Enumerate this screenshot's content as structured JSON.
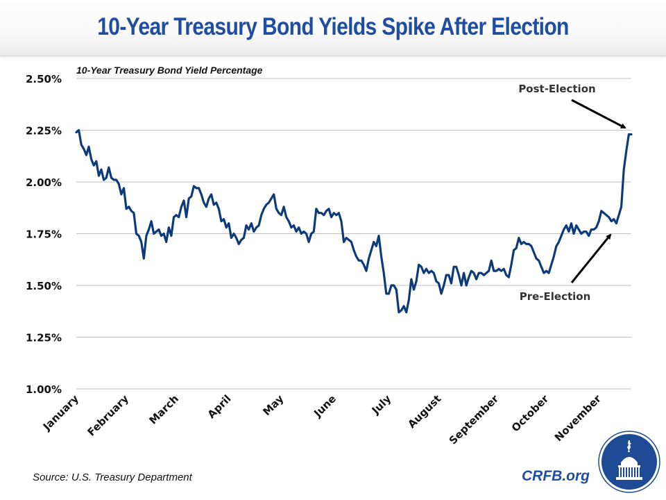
{
  "header": {
    "title": "10-Year Treasury Bond Yields Spike After Election"
  },
  "footer": {
    "source": "Source: U.S. Treasury Department",
    "brand": "CRFB.org",
    "logo_icon": "capitol-dome-icon"
  },
  "colors": {
    "title": "#1f4ea1",
    "line": "#0d3a7a",
    "grid": "#bfbfbf",
    "logo_bg": "#1f4a96"
  },
  "chart_data": {
    "type": "line",
    "title": "10-Year Treasury Bond Yield Percentage",
    "xlabel": "",
    "ylabel": "",
    "ylim": [
      1.0,
      2.5
    ],
    "yticks": [
      1.0,
      1.25,
      1.5,
      1.75,
      2.0,
      2.25,
      2.5
    ],
    "ytick_labels": [
      "1.00%",
      "1.25%",
      "1.50%",
      "1.75%",
      "2.00%",
      "2.25%",
      "2.50%"
    ],
    "grid": true,
    "legend": "none",
    "categories": [
      "January",
      "February",
      "March",
      "April",
      "May",
      "June",
      "July",
      "August",
      "September",
      "October",
      "November"
    ],
    "category_start_index": [
      0,
      20,
      40,
      61,
      82,
      103,
      125,
      145,
      168,
      188,
      209
    ],
    "series": [
      {
        "name": "10-Year Treasury Bond Yield",
        "values": [
          2.24,
          2.25,
          2.18,
          2.16,
          2.13,
          2.17,
          2.11,
          2.08,
          2.1,
          2.03,
          2.06,
          2.01,
          2.02,
          2.07,
          2.02,
          2.01,
          2.01,
          1.99,
          1.94,
          1.97,
          1.87,
          1.88,
          1.86,
          1.85,
          1.75,
          1.74,
          1.71,
          1.63,
          1.74,
          1.77,
          1.81,
          1.75,
          1.76,
          1.77,
          1.74,
          1.75,
          1.71,
          1.78,
          1.74,
          1.83,
          1.84,
          1.83,
          1.88,
          1.91,
          1.83,
          1.92,
          1.93,
          1.98,
          1.97,
          1.97,
          1.94,
          1.9,
          1.88,
          1.92,
          1.94,
          1.89,
          1.9,
          1.87,
          1.81,
          1.82,
          1.78,
          1.8,
          1.73,
          1.75,
          1.73,
          1.7,
          1.72,
          1.73,
          1.79,
          1.77,
          1.8,
          1.76,
          1.78,
          1.79,
          1.84,
          1.87,
          1.89,
          1.9,
          1.92,
          1.94,
          1.87,
          1.85,
          1.84,
          1.88,
          1.83,
          1.81,
          1.78,
          1.79,
          1.76,
          1.78,
          1.75,
          1.76,
          1.75,
          1.71,
          1.75,
          1.76,
          1.87,
          1.85,
          1.85,
          1.84,
          1.86,
          1.87,
          1.83,
          1.85,
          1.84,
          1.85,
          1.81,
          1.71,
          1.73,
          1.72,
          1.71,
          1.67,
          1.64,
          1.62,
          1.62,
          1.6,
          1.57,
          1.63,
          1.67,
          1.71,
          1.69,
          1.74,
          1.64,
          1.56,
          1.46,
          1.46,
          1.5,
          1.5,
          1.48,
          1.37,
          1.38,
          1.4,
          1.37,
          1.43,
          1.53,
          1.48,
          1.52,
          1.6,
          1.59,
          1.56,
          1.58,
          1.56,
          1.57,
          1.56,
          1.52,
          1.51,
          1.46,
          1.5,
          1.55,
          1.55,
          1.51,
          1.59,
          1.59,
          1.55,
          1.5,
          1.56,
          1.5,
          1.54,
          1.57,
          1.56,
          1.53,
          1.56,
          1.56,
          1.55,
          1.56,
          1.57,
          1.62,
          1.57,
          1.57,
          1.58,
          1.57,
          1.58,
          1.55,
          1.54,
          1.6,
          1.67,
          1.68,
          1.73,
          1.7,
          1.71,
          1.7,
          1.7,
          1.69,
          1.66,
          1.63,
          1.62,
          1.59,
          1.56,
          1.57,
          1.56,
          1.6,
          1.64,
          1.69,
          1.71,
          1.74,
          1.77,
          1.79,
          1.76,
          1.8,
          1.75,
          1.79,
          1.77,
          1.75,
          1.76,
          1.76,
          1.74,
          1.77,
          1.77,
          1.78,
          1.81,
          1.86,
          1.85,
          1.84,
          1.83,
          1.81,
          1.82,
          1.8,
          1.84,
          1.88,
          2.06,
          2.15,
          2.23,
          2.23
        ],
        "color": "#0d3a7a"
      }
    ],
    "annotations": [
      {
        "text": "Post-Election",
        "points_to_index": 222
      },
      {
        "text": "Pre-Election",
        "points_to_index": 219
      }
    ]
  }
}
